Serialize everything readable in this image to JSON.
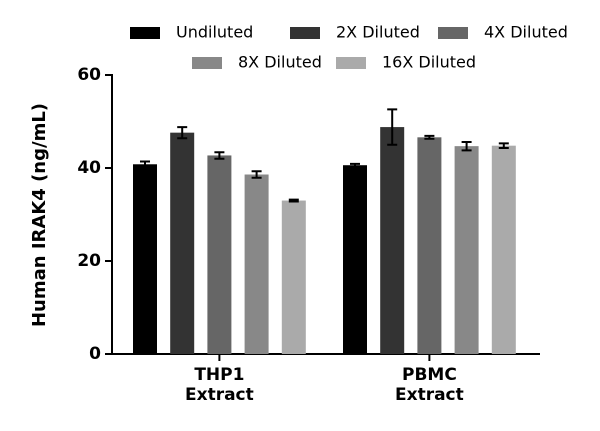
{
  "chart_data": {
    "type": "bar",
    "y_label": "Human IRAK4 (ng/mL)",
    "categories": [
      "THP1\nExtract",
      "PBMC\nExtract"
    ],
    "series": [
      {
        "name": "Undiluted",
        "color": "#000000",
        "values": [
          40.8,
          40.6
        ],
        "errors": [
          0.6,
          0.3
        ]
      },
      {
        "name": "2X Diluted",
        "color": "#333333",
        "values": [
          47.6,
          48.8
        ],
        "errors": [
          1.2,
          3.8
        ]
      },
      {
        "name": "4X Diluted",
        "color": "#666666",
        "values": [
          42.7,
          46.6
        ],
        "errors": [
          0.7,
          0.3
        ]
      },
      {
        "name": "8X Diluted",
        "color": "#888888",
        "values": [
          38.6,
          44.7
        ],
        "errors": [
          0.7,
          0.9
        ]
      },
      {
        "name": "16X Diluted",
        "color": "#aaaaaa",
        "values": [
          33.0,
          44.8
        ],
        "errors": [
          0.2,
          0.5
        ]
      }
    ],
    "ylim": [
      0,
      60
    ],
    "yticks": [
      0,
      20,
      40,
      60
    ]
  }
}
